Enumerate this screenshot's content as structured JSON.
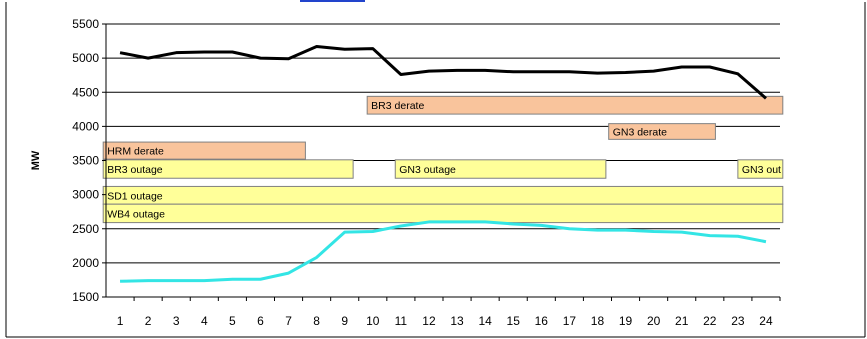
{
  "chart_data": {
    "type": "line",
    "title": "",
    "xlabel": "",
    "ylabel": "MW",
    "ylim": [
      1500,
      5500
    ],
    "y_ticks": [
      1500,
      2000,
      2500,
      3000,
      3500,
      4000,
      4500,
      5000,
      5500
    ],
    "x": [
      1,
      2,
      3,
      4,
      5,
      6,
      7,
      8,
      9,
      10,
      11,
      12,
      13,
      14,
      15,
      16,
      17,
      18,
      19,
      20,
      21,
      22,
      23,
      24
    ],
    "grid": "horizontal",
    "legend": "none",
    "series": [
      {
        "color": "#000000",
        "values": [
          5080,
          5000,
          5080,
          5090,
          5090,
          5000,
          4990,
          5170,
          5130,
          5140,
          4760,
          4810,
          4820,
          4820,
          4800,
          4800,
          4800,
          4780,
          4790,
          4810,
          4870,
          4870,
          4770,
          4410
        ]
      },
      {
        "color": "#33e5e5",
        "values": [
          1730,
          1740,
          1740,
          1740,
          1760,
          1760,
          1850,
          2080,
          2450,
          2460,
          2540,
          2600,
          2600,
          2600,
          2570,
          2550,
          2500,
          2480,
          2480,
          2460,
          2450,
          2400,
          2390,
          2310
        ]
      }
    ],
    "bars": [
      {
        "label": "BR3 derate",
        "x_start": 9.8,
        "x_end": 24.6,
        "y_low": 4180,
        "y_high": 4440,
        "color": "#f9c49c"
      },
      {
        "label": "GN3 derate",
        "x_start": 18.4,
        "x_end": 22.2,
        "y_low": 3810,
        "y_high": 4040,
        "color": "#f9c49c"
      },
      {
        "label": "HRM derate",
        "x_start": 0.4,
        "x_end": 7.6,
        "y_low": 3520,
        "y_high": 3770,
        "color": "#f9c49c"
      },
      {
        "label": "BR3 outage",
        "x_start": 0.4,
        "x_end": 9.3,
        "y_low": 3240,
        "y_high": 3510,
        "color": "#ffff99"
      },
      {
        "label": "GN3 outage",
        "x_start": 10.8,
        "x_end": 18.3,
        "y_low": 3240,
        "y_high": 3510,
        "color": "#ffff99"
      },
      {
        "label": "GN3 out",
        "x_start": 23.0,
        "x_end": 24.6,
        "y_low": 3240,
        "y_high": 3510,
        "color": "#ffff99"
      },
      {
        "label": "SD1 outage",
        "x_start": 0.4,
        "x_end": 24.6,
        "y_low": 2860,
        "y_high": 3120,
        "color": "#ffff99"
      },
      {
        "label": "WB4 outage",
        "x_start": 0.4,
        "x_end": 24.6,
        "y_low": 2590,
        "y_high": 2860,
        "color": "#ffff99"
      }
    ]
  }
}
